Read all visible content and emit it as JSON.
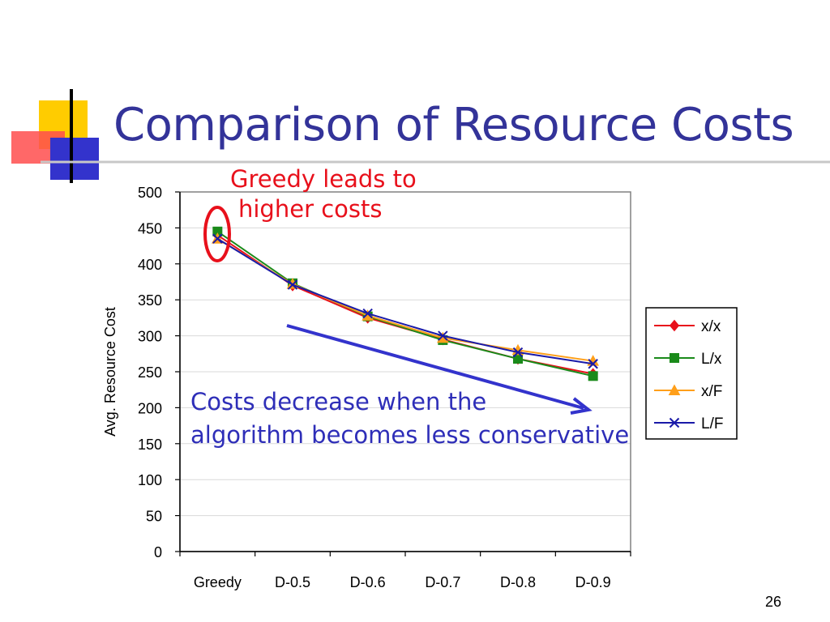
{
  "slide": {
    "title": "Comparison of Resource Costs",
    "page_number": "26"
  },
  "annotations": {
    "greedy_line1": "Greedy leads to",
    "greedy_line2": "higher costs",
    "decrease_line1": "Costs decrease when the",
    "decrease_line2": "algorithm becomes less conservative"
  },
  "colors": {
    "title": "#333399",
    "greedy_annotation": "#e8101b",
    "decrease_annotation": "#2e2eb8",
    "arrow": "#3333cc",
    "highlight_ellipse": "#e8101b",
    "deco_yellow": "#ffcc00",
    "deco_red": "#ff3333",
    "deco_blue": "#3333cc"
  },
  "chart_data": {
    "type": "line",
    "categories": [
      "Greedy",
      "D-0.5",
      "D-0.6",
      "D-0.7",
      "D-0.8",
      "D-0.9"
    ],
    "ylabel": "Avg. Resource Cost",
    "xlabel": "",
    "ylim": [
      0,
      500
    ],
    "yticks": [
      0,
      50,
      100,
      150,
      200,
      250,
      300,
      350,
      400,
      450,
      500
    ],
    "grid": true,
    "legend_position": "right",
    "series": [
      {
        "name": "x/x",
        "color": "#e8101b",
        "marker": "diamond",
        "values": [
          440,
          370,
          325,
          295,
          268,
          247
        ]
      },
      {
        "name": "L/x",
        "color": "#1a8a1a",
        "marker": "square",
        "values": [
          445,
          373,
          327,
          294,
          268,
          244
        ]
      },
      {
        "name": "x/F",
        "color": "#ff9f1a",
        "marker": "triangle",
        "values": [
          435,
          372,
          328,
          297,
          280,
          265
        ]
      },
      {
        "name": "L/F",
        "color": "#1a1aa8",
        "marker": "x",
        "values": [
          435,
          371,
          331,
          300,
          277,
          261
        ]
      }
    ]
  }
}
